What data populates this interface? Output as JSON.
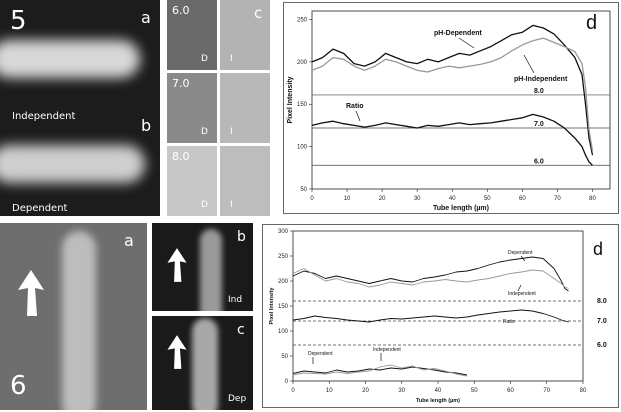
{
  "figure5": {
    "number": "5",
    "panel_a": {
      "letter": "a",
      "caption": "Independent"
    },
    "panel_b": {
      "letter": "b",
      "caption": "Dependent"
    },
    "panel_c": {
      "letter": "c",
      "rows": [
        {
          "ph": "6.0",
          "left_tag": "D",
          "right_tag": "I"
        },
        {
          "ph": "7.0",
          "left_tag": "D",
          "right_tag": "I"
        },
        {
          "ph": "8.0",
          "left_tag": "D",
          "right_tag": "I"
        }
      ]
    },
    "panel_d": {
      "letter": "d"
    }
  },
  "figure6": {
    "number": "6",
    "panel_a": {
      "letter": "a"
    },
    "panel_b": {
      "letter": "b",
      "caption": "Ind"
    },
    "panel_c": {
      "letter": "c",
      "caption": "Dep"
    },
    "panel_d": {
      "letter": "d"
    }
  },
  "chart_data": [
    {
      "type": "line",
      "panel": "5d",
      "xlabel": "Tube length (µm)",
      "ylabel": "Pixel Intensity",
      "xlim": [
        0,
        85
      ],
      "ylim": [
        50,
        260
      ],
      "xticks": [
        "0",
        "10",
        "20",
        "30",
        "40",
        "50",
        "60",
        "70",
        "80"
      ],
      "yticks": [
        "50",
        "100",
        "150",
        "200",
        "250"
      ],
      "grid": false,
      "series": [
        {
          "name": "pH-Dependent",
          "color": "#111111",
          "x": [
            0,
            3,
            6,
            9,
            12,
            15,
            18,
            21,
            24,
            27,
            30,
            33,
            36,
            39,
            42,
            45,
            48,
            51,
            54,
            57,
            60,
            63,
            66,
            69,
            72,
            75,
            77,
            78,
            79,
            80
          ],
          "y": [
            200,
            205,
            215,
            210,
            198,
            195,
            200,
            210,
            205,
            200,
            198,
            203,
            200,
            205,
            210,
            208,
            213,
            218,
            225,
            232,
            235,
            243,
            240,
            233,
            220,
            205,
            185,
            150,
            110,
            90
          ]
        },
        {
          "name": "pH-Independent",
          "color": "#999999",
          "x": [
            0,
            3,
            6,
            9,
            12,
            15,
            18,
            21,
            24,
            27,
            30,
            33,
            36,
            39,
            42,
            45,
            48,
            51,
            54,
            57,
            60,
            63,
            66,
            69,
            72,
            75,
            77,
            78,
            79,
            80
          ],
          "y": [
            190,
            195,
            205,
            203,
            195,
            190,
            195,
            203,
            200,
            195,
            190,
            188,
            192,
            195,
            193,
            195,
            197,
            200,
            205,
            213,
            220,
            225,
            228,
            223,
            218,
            212,
            198,
            170,
            120,
            95
          ]
        },
        {
          "name": "Ratio",
          "color": "#111111",
          "x": [
            0,
            3,
            6,
            9,
            12,
            15,
            18,
            21,
            24,
            27,
            30,
            33,
            36,
            39,
            42,
            45,
            48,
            51,
            54,
            57,
            60,
            63,
            66,
            69,
            72,
            75,
            77,
            78,
            79,
            80
          ],
          "y": [
            125,
            128,
            130,
            127,
            125,
            123,
            125,
            128,
            126,
            124,
            122,
            125,
            124,
            126,
            128,
            126,
            127,
            128,
            130,
            132,
            134,
            138,
            135,
            130,
            122,
            110,
            100,
            90,
            82,
            78
          ]
        }
      ],
      "reference_lines": [
        {
          "label": "8.0",
          "y": 161
        },
        {
          "label": "7.0",
          "y": 122
        },
        {
          "label": "6.0",
          "y": 78
        }
      ]
    },
    {
      "type": "line",
      "panel": "6d",
      "xlabel": "Tube length (µm)",
      "ylabel": "Pixel Intensity",
      "xlim": [
        0,
        80
      ],
      "ylim": [
        0,
        300
      ],
      "xticks": [
        "0",
        "10",
        "20",
        "30",
        "40",
        "50",
        "60",
        "70",
        "80"
      ],
      "yticks": [
        "0",
        "50",
        "100",
        "150",
        "200",
        "250",
        "300"
      ],
      "grid": false,
      "series": [
        {
          "name": "Dependent",
          "color": "#111111",
          "x": [
            0,
            3,
            6,
            9,
            12,
            15,
            18,
            21,
            24,
            27,
            30,
            33,
            36,
            39,
            42,
            45,
            48,
            51,
            54,
            57,
            60,
            63,
            66,
            69,
            72,
            74,
            75,
            76
          ],
          "y": [
            210,
            220,
            215,
            205,
            210,
            205,
            200,
            195,
            200,
            205,
            200,
            198,
            205,
            208,
            212,
            218,
            220,
            225,
            232,
            238,
            242,
            245,
            248,
            245,
            225,
            200,
            185,
            180
          ]
        },
        {
          "name": "Independent",
          "color": "#999999",
          "x": [
            0,
            3,
            6,
            9,
            12,
            15,
            18,
            21,
            24,
            27,
            30,
            33,
            36,
            39,
            42,
            45,
            48,
            51,
            54,
            57,
            60,
            63,
            66,
            69,
            72,
            74,
            75,
            76
          ],
          "y": [
            215,
            225,
            212,
            200,
            205,
            198,
            195,
            188,
            192,
            198,
            195,
            192,
            198,
            200,
            203,
            200,
            198,
            202,
            205,
            210,
            215,
            218,
            222,
            220,
            205,
            195,
            188,
            185
          ]
        },
        {
          "name": "Ratio",
          "color": "#111111",
          "x": [
            0,
            3,
            6,
            9,
            12,
            15,
            18,
            21,
            24,
            27,
            30,
            33,
            36,
            39,
            42,
            45,
            48,
            51,
            54,
            57,
            60,
            63,
            66,
            69,
            72,
            74,
            75,
            76
          ],
          "y": [
            122,
            125,
            130,
            127,
            125,
            122,
            120,
            118,
            122,
            125,
            124,
            126,
            128,
            130,
            128,
            126,
            128,
            132,
            135,
            138,
            140,
            142,
            140,
            135,
            128,
            122,
            120,
            118
          ]
        },
        {
          "name": "Dependent (low)",
          "color": "#111111",
          "x": [
            0,
            3,
            6,
            9,
            12,
            15,
            18,
            21,
            24,
            27,
            30,
            33,
            36,
            39,
            42,
            45,
            48
          ],
          "y": [
            15,
            20,
            18,
            16,
            22,
            18,
            20,
            24,
            22,
            26,
            24,
            28,
            25,
            22,
            18,
            16,
            12
          ]
        },
        {
          "name": "Independent (low)",
          "color": "#999999",
          "x": [
            0,
            3,
            6,
            9,
            12,
            15,
            18,
            21,
            24,
            27,
            30,
            33,
            36,
            39,
            42,
            45,
            48
          ],
          "y": [
            12,
            16,
            15,
            14,
            18,
            15,
            18,
            20,
            28,
            32,
            26,
            30,
            22,
            25,
            20,
            14,
            10
          ]
        }
      ],
      "reference_lines": [
        {
          "label": "8.0",
          "y": 160
        },
        {
          "label": "7.0",
          "y": 120
        },
        {
          "label": "6.0",
          "y": 72
        }
      ]
    }
  ]
}
